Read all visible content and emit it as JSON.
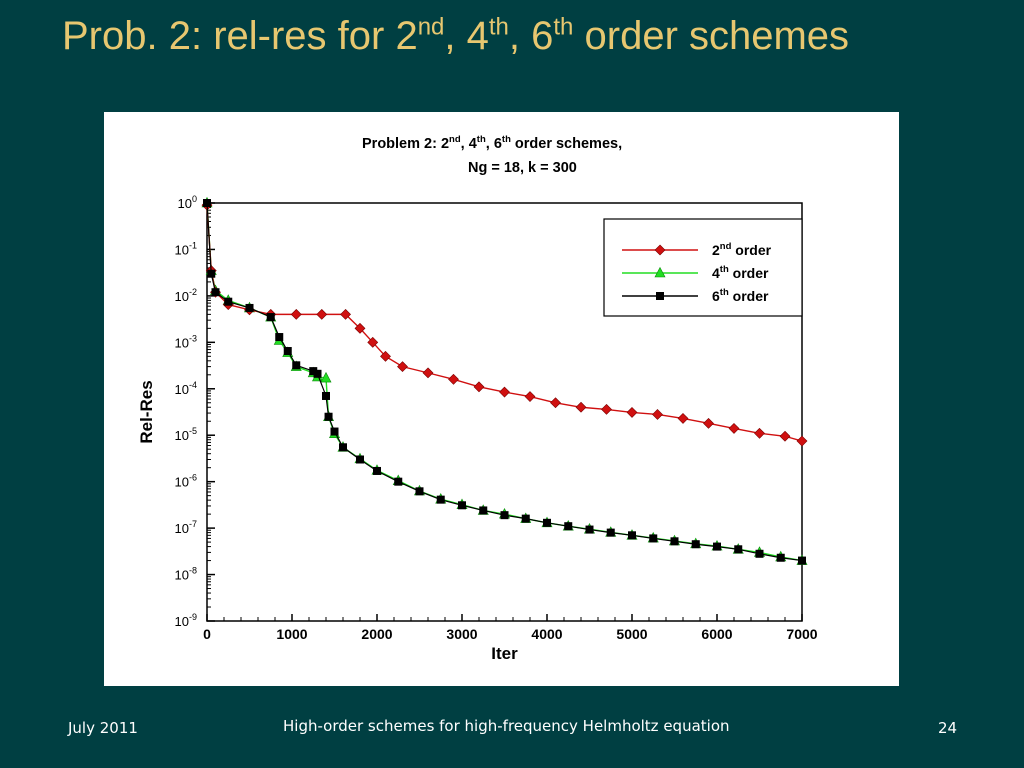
{
  "slide": {
    "title_prefix": "Prob. 2: rel-res for 2",
    "title_sup1": "nd",
    "title_sep1": ", 4",
    "title_sup2": "th",
    "title_sep2": ", 6",
    "title_sup3": "th",
    "title_suffix": " order schemes"
  },
  "footer": {
    "date": "July 2011",
    "center": "High-order schemes for high-frequency Helmholtz equation",
    "page": "24"
  },
  "chart_data": {
    "type": "line",
    "title_line1": "Problem 2:  2nd,  4th,  6th order schemes,",
    "title_line2": "Ng = 18,  k = 300",
    "xlabel": "Iter",
    "ylabel": "Rel-Res",
    "y_scale": "log",
    "xlim": [
      0,
      7000
    ],
    "ylim": [
      1e-09,
      1
    ],
    "x_ticks": [
      0,
      1000,
      2000,
      3000,
      4000,
      5000,
      6000,
      7000
    ],
    "y_tick_exponents": [
      0,
      -1,
      -2,
      -3,
      -4,
      -5,
      -6,
      -7,
      -8,
      -9
    ],
    "y_tick_base": "10",
    "grid": false,
    "legend_position": "top-right",
    "series": [
      {
        "name": "2nd order",
        "name_base": "2",
        "name_sup": "nd",
        "name_rest": " order",
        "color": "#d01010",
        "marker": "diamond",
        "x": [
          0,
          50,
          100,
          250,
          500,
          750,
          1050,
          1350,
          1630,
          1800,
          1950,
          2100,
          2300,
          2600,
          2900,
          3200,
          3500,
          3800,
          4100,
          4400,
          4700,
          5000,
          5300,
          5600,
          5900,
          6200,
          6500,
          6800,
          7000
        ],
        "y": [
          0.9,
          0.035,
          0.012,
          0.0065,
          0.005,
          0.004,
          0.004,
          0.004,
          0.004,
          0.002,
          0.001,
          0.0005,
          0.0003,
          0.00022,
          0.00016,
          0.00011,
          8.5e-05,
          6.8e-05,
          5e-05,
          4e-05,
          3.6e-05,
          3.1e-05,
          2.8e-05,
          2.3e-05,
          1.8e-05,
          1.4e-05,
          1.1e-05,
          9.5e-06,
          7.5e-06
        ]
      },
      {
        "name": "4th order",
        "name_base": "4",
        "name_sup": "th",
        "name_rest": " order",
        "color": "#22dd22",
        "marker": "triangle",
        "x": [
          0,
          50,
          100,
          250,
          500,
          750,
          850,
          950,
          1050,
          1250,
          1300,
          1400,
          1430,
          1500,
          1600,
          1800,
          2000,
          2250,
          2500,
          2750,
          3000,
          3250,
          3500,
          3750,
          4000,
          4250,
          4500,
          4750,
          5000,
          5250,
          5500,
          5750,
          6000,
          6250,
          6500,
          6750,
          7000
        ],
        "y": [
          1.0,
          0.035,
          0.013,
          0.008,
          0.0055,
          0.0035,
          0.0011,
          0.0006,
          0.0003,
          0.00022,
          0.00018,
          0.00017,
          2.5e-05,
          1.08e-05,
          5.5e-06,
          3.1e-06,
          1.75e-06,
          1.05e-06,
          6.3e-07,
          4.2e-07,
          3.2e-07,
          2.4e-07,
          2e-07,
          1.6e-07,
          1.3e-07,
          1.1e-07,
          9.5e-08,
          8.1e-08,
          7e-08,
          6.1e-08,
          5.3e-08,
          4.6e-08,
          4.1e-08,
          3.5e-08,
          3e-08,
          2.4e-08,
          2e-08
        ]
      },
      {
        "name": "6th order",
        "name_base": "6",
        "name_sup": "th",
        "name_rest": " order",
        "color": "#000000",
        "marker": "square",
        "x": [
          0,
          50,
          100,
          250,
          500,
          750,
          850,
          950,
          1050,
          1250,
          1300,
          1400,
          1430,
          1500,
          1600,
          1800,
          2000,
          2250,
          2500,
          2750,
          3000,
          3250,
          3500,
          3750,
          4000,
          4250,
          4500,
          4750,
          5000,
          5250,
          5500,
          5750,
          6000,
          6250,
          6500,
          6750,
          7000
        ],
        "y": [
          1.0,
          0.03,
          0.012,
          0.0075,
          0.0055,
          0.0035,
          0.0013,
          0.00065,
          0.00032,
          0.00024,
          0.00021,
          7e-05,
          2.5e-05,
          1.2e-05,
          5.5e-06,
          3e-06,
          1.7e-06,
          1e-06,
          6.2e-07,
          4.1e-07,
          3.1e-07,
          2.4e-07,
          1.9e-07,
          1.6e-07,
          1.3e-07,
          1.1e-07,
          9.3e-08,
          8e-08,
          7e-08,
          6e-08,
          5.2e-08,
          4.5e-08,
          4e-08,
          3.5e-08,
          2.8e-08,
          2.3e-08,
          2e-08
        ]
      }
    ]
  }
}
